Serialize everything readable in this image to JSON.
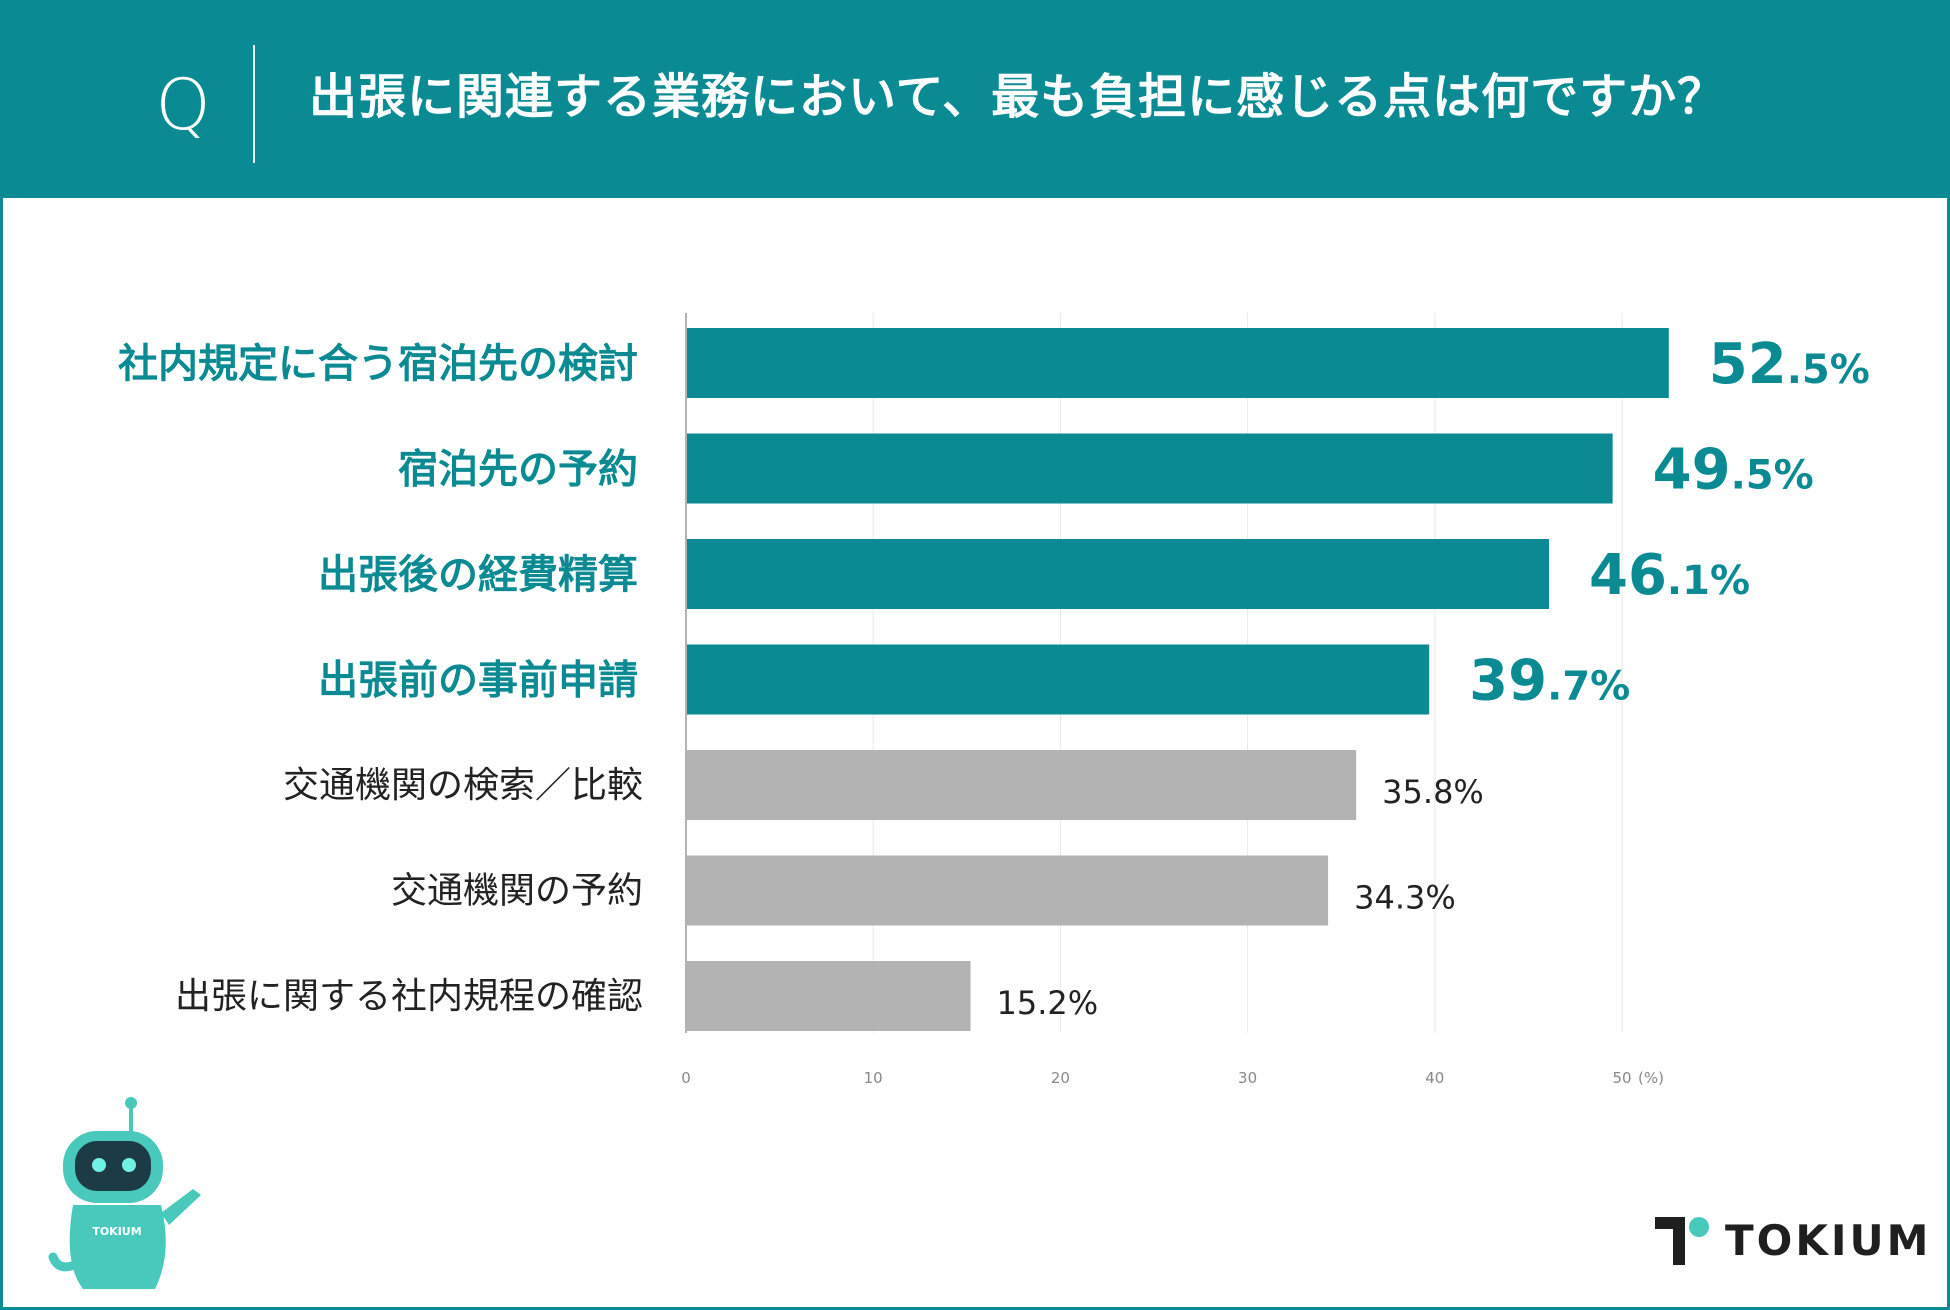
{
  "header": {
    "q_letter": "Q",
    "question": "出張に関連する業務において、最も負担に感じる点は何ですか？"
  },
  "colors": {
    "accent": "#0a8a93",
    "muted": "#b3b3b3",
    "text_dark": "#222222",
    "axis": "#888888"
  },
  "chart_data": {
    "type": "bar",
    "orientation": "horizontal",
    "title": "出張に関連する業務において、最も負担に感じる点は何ですか？",
    "categories": [
      "社内規定に合う宿泊先の検討",
      "宿泊先の予約",
      "出張後の経費精算",
      "出張前の事前申請",
      "交通機関の検索／比較",
      "交通機関の予約",
      "出張に関する社内規程の確認"
    ],
    "values": [
      52.5,
      49.5,
      46.1,
      39.7,
      35.8,
      34.3,
      15.2
    ],
    "value_labels": [
      {
        "int": "52",
        "dec": ".5",
        "pct": "%"
      },
      {
        "int": "49",
        "dec": ".5",
        "pct": "%"
      },
      {
        "int": "46",
        "dec": ".1",
        "pct": "%"
      },
      {
        "int": "39",
        "dec": ".7",
        "pct": "%"
      },
      {
        "int": "35",
        "dec": ".8",
        "pct": "%"
      },
      {
        "int": "34",
        "dec": ".3",
        "pct": "%"
      },
      {
        "int": "15",
        "dec": ".2",
        "pct": "%"
      }
    ],
    "highlighted": [
      true,
      true,
      true,
      true,
      false,
      false,
      false
    ],
    "xlim": [
      0,
      55
    ],
    "x_ticks": [
      "0",
      "10",
      "20",
      "30",
      "40",
      "50"
    ],
    "x_unit": "(%)",
    "grid": true
  },
  "mascot": {
    "badge": "TOKIUM"
  },
  "logo": {
    "text": "TOKIUM"
  }
}
